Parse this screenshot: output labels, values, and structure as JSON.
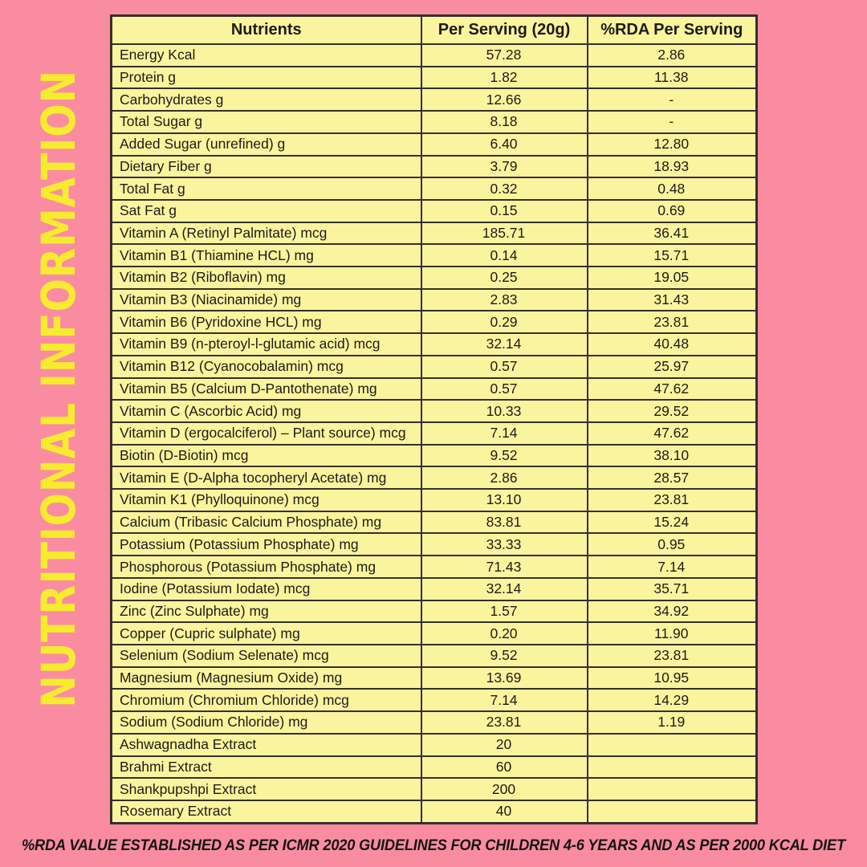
{
  "colors": {
    "background_pink": "#FA8CA1",
    "table_yellow": "#FBF49E",
    "border_dark": "#35302A",
    "title_yellow": "#F7EB2F",
    "text_dark": "#1C1B18"
  },
  "page": {
    "vertical_title": "NUTRITIONAL INFORMATION",
    "footnote": "%RDA VALUE ESTABLISHED AS PER ICMR 2020 GUIDELINES FOR CHILDREN 4-6 YEARS AND AS PER 2000 KCAL DIET"
  },
  "table": {
    "headers": [
      "Nutrients",
      "Per Serving (20g)",
      "%RDA Per Serving"
    ],
    "rows": [
      [
        "Energy Kcal",
        "57.28",
        "2.86"
      ],
      [
        "Protein g",
        "1.82",
        "11.38"
      ],
      [
        "Carbohydrates g",
        "12.66",
        "-"
      ],
      [
        "Total Sugar g",
        "8.18",
        "-"
      ],
      [
        "Added Sugar (unrefined) g",
        "6.40",
        "12.80"
      ],
      [
        "Dietary Fiber g",
        "3.79",
        "18.93"
      ],
      [
        "Total Fat g",
        "0.32",
        "0.48"
      ],
      [
        "Sat Fat g",
        "0.15",
        "0.69"
      ],
      [
        "Vitamin A (Retinyl Palmitate) mcg",
        "185.71",
        "36.41"
      ],
      [
        "Vitamin B1 (Thiamine HCL) mg",
        "0.14",
        "15.71"
      ],
      [
        "Vitamin B2 (Riboflavin) mg",
        "0.25",
        "19.05"
      ],
      [
        "Vitamin B3 (Niacinamide) mg",
        "2.83",
        "31.43"
      ],
      [
        "Vitamin B6 (Pyridoxine HCL) mg",
        "0.29",
        "23.81"
      ],
      [
        "Vitamin B9 (n-pteroyl-l-glutamic acid) mcg",
        "32.14",
        "40.48"
      ],
      [
        "Vitamin B12 (Cyanocobalamin) mcg",
        "0.57",
        "25.97"
      ],
      [
        "Vitamin B5 (Calcium D-Pantothenate) mg",
        "0.57",
        "47.62"
      ],
      [
        "Vitamin C (Ascorbic Acid) mg",
        "10.33",
        "29.52"
      ],
      [
        "Vitamin D (ergocalciferol) – Plant source) mcg",
        "7.14",
        "47.62"
      ],
      [
        "Biotin (D-Biotin) mcg",
        "9.52",
        "38.10"
      ],
      [
        "Vitamin E (D-Alpha tocopheryl Acetate) mg",
        "2.86",
        "28.57"
      ],
      [
        "Vitamin K1 (Phylloquinone) mcg",
        "13.10",
        "23.81"
      ],
      [
        "Calcium (Tribasic Calcium Phosphate) mg",
        "83.81",
        "15.24"
      ],
      [
        "Potassium (Potassium Phosphate) mg",
        "33.33",
        "0.95"
      ],
      [
        "Phosphorous (Potassium Phosphate) mg",
        "71.43",
        "7.14"
      ],
      [
        "Iodine (Potassium Iodate) mcg",
        "32.14",
        "35.71"
      ],
      [
        "Zinc (Zinc Sulphate) mg",
        "1.57",
        "34.92"
      ],
      [
        "Copper (Cupric sulphate) mg",
        "0.20",
        "11.90"
      ],
      [
        "Selenium (Sodium Selenate) mcg",
        "9.52",
        "23.81"
      ],
      [
        "Magnesium (Magnesium Oxide) mg",
        "13.69",
        "10.95"
      ],
      [
        "Chromium (Chromium Chloride) mcg",
        "7.14",
        "14.29"
      ],
      [
        "Sodium (Sodium Chloride) mg",
        "23.81",
        "1.19"
      ],
      [
        "Ashwagnadha Extract",
        "20",
        ""
      ],
      [
        "Brahmi Extract",
        "60",
        ""
      ],
      [
        "Shankpupshpi Extract",
        "200",
        ""
      ],
      [
        "Rosemary Extract",
        "40",
        ""
      ]
    ]
  }
}
